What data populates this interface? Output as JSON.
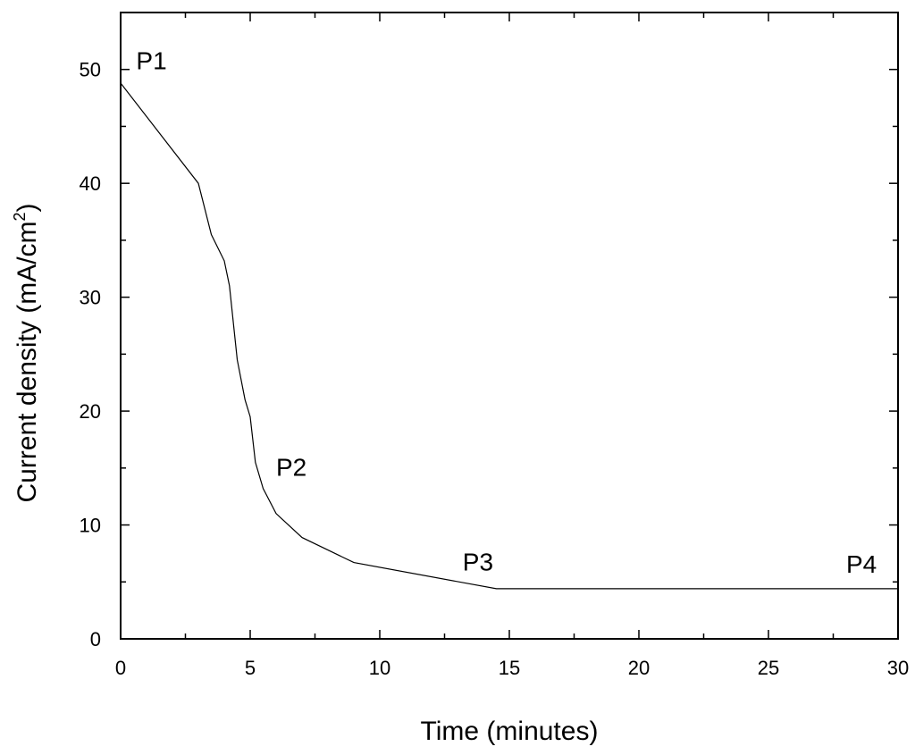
{
  "chart_data": {
    "type": "line",
    "title": "",
    "xlabel": "Time (minutes)",
    "ylabel": "Current density (mA/cm²)",
    "ylabel_main": "Current density (mA/cm",
    "ylabel_sup": "2",
    "ylabel_end": ")",
    "xlim": [
      0,
      30
    ],
    "ylim": [
      0,
      55
    ],
    "xticks": [
      0,
      5,
      10,
      15,
      20,
      25,
      30
    ],
    "yticks": [
      0,
      10,
      20,
      30,
      40,
      50
    ],
    "grid": false,
    "series": [
      {
        "x": [
          0,
          3,
          3.5,
          4,
          4.2,
          4.5,
          4.8,
          5,
          5.2,
          5.5,
          6,
          7,
          9,
          14.5,
          30
        ],
        "y": [
          48.8,
          40,
          35.5,
          33.2,
          31,
          24.5,
          21,
          19.5,
          15.5,
          13.2,
          11,
          8.9,
          6.7,
          4.4,
          4.4
        ]
      }
    ],
    "annotations": [
      {
        "text": "P1",
        "x": 0.6,
        "y": 50
      },
      {
        "text": "P2",
        "x": 6.0,
        "y": 14.3
      },
      {
        "text": "P3",
        "x": 13.2,
        "y": 6.0
      },
      {
        "text": "P4",
        "x": 28.0,
        "y": 5.8
      }
    ]
  }
}
